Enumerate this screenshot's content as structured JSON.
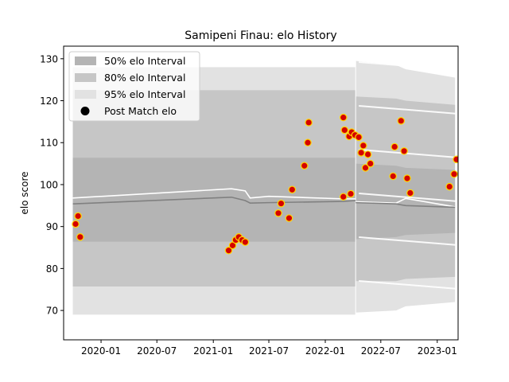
{
  "chart_data": {
    "type": "line",
    "title": "Samipeni Finau: elo History",
    "xlabel": "",
    "ylabel": "elo score",
    "xlim": [
      "2019-09-01",
      "2023-03-10"
    ],
    "ylim": [
      63,
      133
    ],
    "x_ticks": [
      "2020-01",
      "2020-07",
      "2021-01",
      "2021-07",
      "2022-01",
      "2022-07",
      "2023-01"
    ],
    "y_ticks": [
      70,
      80,
      90,
      100,
      110,
      120,
      130
    ],
    "grid": false,
    "legend_position": "top-left",
    "legend": [
      {
        "label": "50% elo Interval",
        "color": "#b4b4b4"
      },
      {
        "label": "80% elo Interval",
        "color": "#c6c6c6"
      },
      {
        "label": "95% elo Interval",
        "color": "#e2e2e2"
      },
      {
        "label": "Post Match elo",
        "color": "#000000"
      }
    ],
    "colors": {
      "band50": "#b4b4b4",
      "band80": "#c6c6c6",
      "band95": "#e2e2e2",
      "mean_line": "#808080",
      "rating_line": "#ffffff",
      "marker_fill": "#d40000",
      "marker_edge": "#ffd700"
    },
    "history": {
      "dates": [
        "2019-10-01",
        "2021-03-01",
        "2021-04-15",
        "2021-05-01",
        "2021-07-01",
        "2022-03-01",
        "2022-04-10"
      ],
      "mean": [
        95.4,
        97.0,
        96.2,
        95.6,
        95.7,
        96.0,
        96.2
      ],
      "rating": [
        96.8,
        99.0,
        98.5,
        96.8,
        97.2,
        96.6,
        96.6
      ],
      "band50": [
        [
          86.4,
          106.4
        ],
        [
          86.4,
          106.4
        ],
        [
          86.4,
          106.4
        ],
        [
          86.4,
          106.4
        ],
        [
          86.4,
          106.4
        ],
        [
          86.4,
          106.4
        ],
        [
          86.4,
          106.4
        ]
      ],
      "band80": [
        [
          75.7,
          122.5
        ],
        [
          75.7,
          122.5
        ],
        [
          75.7,
          122.5
        ],
        [
          75.7,
          122.5
        ],
        [
          75.7,
          122.5
        ],
        [
          75.7,
          122.5
        ],
        [
          75.7,
          122.5
        ]
      ],
      "band95": [
        [
          69.0,
          128.0
        ],
        [
          69.0,
          128.0
        ],
        [
          69.0,
          128.0
        ],
        [
          69.0,
          128.0
        ],
        [
          69.0,
          128.0
        ],
        [
          69.0,
          128.0
        ],
        [
          69.0,
          128.0
        ]
      ]
    },
    "forecast": {
      "dates": [
        "2022-04-10",
        "2022-08-20",
        "2022-09-20",
        "2023-02-28"
      ],
      "mean": [
        95.7,
        95.4,
        95.0,
        94.6
      ],
      "rating": [
        95.9,
        95.6,
        96.7,
        94.7
      ],
      "band50": [
        [
          87.0,
          105.0
        ],
        [
          87.5,
          104.5
        ],
        [
          88.0,
          104.0
        ],
        [
          88.5,
          103.5
        ]
      ],
      "band80": [
        [
          77.0,
          121.0
        ],
        [
          77.0,
          120.5
        ],
        [
          77.5,
          120.0
        ],
        [
          78.0,
          119.0
        ]
      ],
      "band95": [
        [
          69.5,
          129.5
        ],
        [
          70.0,
          128.5
        ],
        [
          71.0,
          127.5
        ],
        [
          72.0,
          125.5
        ]
      ]
    },
    "points": [
      {
        "x": "2019-10-10",
        "y": 90.6
      },
      {
        "x": "2019-10-18",
        "y": 92.5
      },
      {
        "x": "2019-10-25",
        "y": 87.5
      },
      {
        "x": "2021-02-20",
        "y": 84.3
      },
      {
        "x": "2021-03-05",
        "y": 85.5
      },
      {
        "x": "2021-03-15",
        "y": 86.8
      },
      {
        "x": "2021-03-25",
        "y": 87.5
      },
      {
        "x": "2021-04-05",
        "y": 86.8
      },
      {
        "x": "2021-04-15",
        "y": 86.3
      },
      {
        "x": "2021-08-01",
        "y": 93.2
      },
      {
        "x": "2021-08-10",
        "y": 95.5
      },
      {
        "x": "2021-09-05",
        "y": 92.0
      },
      {
        "x": "2021-09-15",
        "y": 98.8
      },
      {
        "x": "2021-10-25",
        "y": 104.5
      },
      {
        "x": "2021-11-05",
        "y": 110.0
      },
      {
        "x": "2021-11-08",
        "y": 114.8
      },
      {
        "x": "2022-03-01",
        "y": 116.0
      },
      {
        "x": "2022-03-05",
        "y": 113.0
      },
      {
        "x": "2022-03-01",
        "y": 97.1
      },
      {
        "x": "2022-03-20",
        "y": 111.5
      },
      {
        "x": "2022-03-28",
        "y": 112.5
      },
      {
        "x": "2022-03-25",
        "y": 97.8
      },
      {
        "x": "2022-04-08",
        "y": 111.8
      },
      {
        "x": "2022-04-20",
        "y": 111.3
      },
      {
        "x": "2022-04-28",
        "y": 107.6
      },
      {
        "x": "2022-05-05",
        "y": 109.3
      },
      {
        "x": "2022-05-12",
        "y": 104.0
      },
      {
        "x": "2022-05-20",
        "y": 107.2
      },
      {
        "x": "2022-05-28",
        "y": 105.0
      },
      {
        "x": "2022-08-10",
        "y": 102.0
      },
      {
        "x": "2022-08-15",
        "y": 109.0
      },
      {
        "x": "2022-09-05",
        "y": 115.2
      },
      {
        "x": "2022-09-15",
        "y": 108.0
      },
      {
        "x": "2022-09-25",
        "y": 101.5
      },
      {
        "x": "2022-10-05",
        "y": 98.0
      },
      {
        "x": "2023-02-10",
        "y": 99.5
      },
      {
        "x": "2023-02-25",
        "y": 102.5
      },
      {
        "x": "2023-03-05",
        "y": 106.0
      }
    ]
  }
}
